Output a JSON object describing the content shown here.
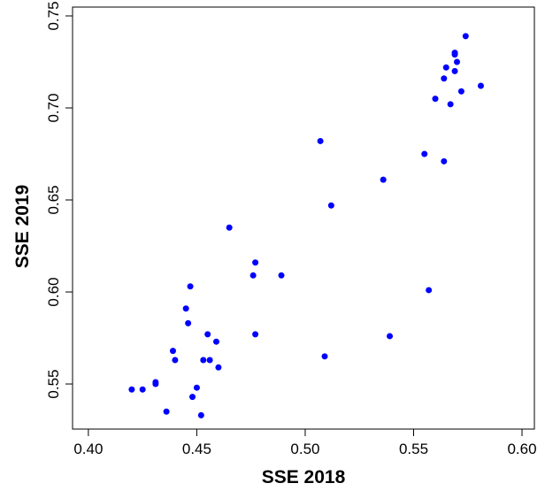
{
  "chart_data": {
    "type": "scatter",
    "x_label": "SSE 2018",
    "y_label": "SSE 2019",
    "color": "#0000ff",
    "series": [
      {
        "x": [
          0.574,
          0.569,
          0.569,
          0.57,
          0.565,
          0.569,
          0.564,
          0.572,
          0.581,
          0.56,
          0.567,
          0.507,
          0.555,
          0.564,
          0.536,
          0.512,
          0.465,
          0.477,
          0.476,
          0.489,
          0.447,
          0.557,
          0.445,
          0.446,
          0.455,
          0.477,
          0.459,
          0.539,
          0.439,
          0.44,
          0.509,
          0.453,
          0.456,
          0.46,
          0.431,
          0.431,
          0.42,
          0.425,
          0.45,
          0.448,
          0.436,
          0.452
        ],
        "y": [
          0.739,
          0.73,
          0.729,
          0.725,
          0.722,
          0.72,
          0.716,
          0.709,
          0.712,
          0.705,
          0.702,
          0.682,
          0.675,
          0.671,
          0.661,
          0.647,
          0.635,
          0.616,
          0.609,
          0.609,
          0.603,
          0.601,
          0.591,
          0.583,
          0.577,
          0.577,
          0.573,
          0.576,
          0.568,
          0.563,
          0.565,
          0.563,
          0.563,
          0.559,
          0.551,
          0.55,
          0.547,
          0.547,
          0.548,
          0.543,
          0.535,
          0.533
        ]
      }
    ],
    "xlim": [
      0.3927,
      0.6057
    ],
    "ylim": [
      0.5255,
      0.7548
    ],
    "xticks": [
      {
        "value": 0.4,
        "label": "0.40"
      },
      0.45,
      {
        "value": 0.5,
        "label": "0.50"
      },
      0.55,
      {
        "value": 0.6,
        "label": "0.60"
      }
    ],
    "yticks": [
      0.55,
      {
        "value": 0.6,
        "label": "0.60"
      },
      0.65,
      {
        "value": 0.7,
        "label": "0.70"
      },
      0.75
    ]
  }
}
